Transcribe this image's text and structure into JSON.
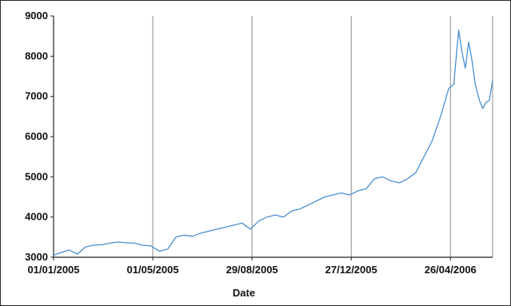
{
  "chart_data": {
    "type": "line",
    "title": "",
    "xlabel": "Date",
    "ylabel": "",
    "x_tick_labels": [
      "01/01/2005",
      "01/05/2005",
      "29/08/2005",
      "27/12/2005",
      "26/04/2006"
    ],
    "x_tick_dates": [
      "2005-01-01",
      "2005-05-01",
      "2005-08-29",
      "2005-12-27",
      "2006-04-26"
    ],
    "xlim": [
      "2005-01-01",
      "2006-06-16"
    ],
    "y_tick_labels": [
      "3000",
      "4000",
      "5000",
      "6000",
      "7000",
      "8000",
      "9000"
    ],
    "y_ticks": [
      3000,
      4000,
      5000,
      6000,
      7000,
      8000,
      9000
    ],
    "ylim": [
      3000,
      9000
    ],
    "grid": "vertical",
    "legend": "none",
    "colors": {
      "line": "#4a8fd0",
      "grid": "#8c8c8c",
      "axis": "#222222"
    },
    "series": [
      {
        "dates": [
          "2005-01-01",
          "2005-01-10",
          "2005-01-20",
          "2005-01-30",
          "2005-02-08",
          "2005-02-18",
          "2005-02-28",
          "2005-03-10",
          "2005-03-20",
          "2005-03-30",
          "2005-04-09",
          "2005-04-19",
          "2005-04-29",
          "2005-05-09",
          "2005-05-19",
          "2005-05-29",
          "2005-06-08",
          "2005-06-18",
          "2005-06-28",
          "2005-07-08",
          "2005-07-18",
          "2005-07-28",
          "2005-08-07",
          "2005-08-17",
          "2005-08-27",
          "2005-09-06",
          "2005-09-16",
          "2005-09-26",
          "2005-10-06",
          "2005-10-16",
          "2005-10-26",
          "2005-11-05",
          "2005-11-15",
          "2005-11-25",
          "2005-12-05",
          "2005-12-15",
          "2005-12-25",
          "2006-01-04",
          "2006-01-14",
          "2006-01-24",
          "2006-02-03",
          "2006-02-13",
          "2006-02-23",
          "2006-03-05",
          "2006-03-15",
          "2006-03-25",
          "2006-04-04",
          "2006-04-14",
          "2006-04-24",
          "2006-04-30",
          "2006-05-06",
          "2006-05-10",
          "2006-05-14",
          "2006-05-18",
          "2006-05-22",
          "2006-05-26",
          "2006-05-31",
          "2006-06-04",
          "2006-06-08",
          "2006-06-12",
          "2006-06-16"
        ],
        "values": [
          3050,
          3120,
          3180,
          3080,
          3250,
          3300,
          3310,
          3350,
          3380,
          3360,
          3350,
          3300,
          3280,
          3150,
          3200,
          3500,
          3550,
          3520,
          3600,
          3650,
          3700,
          3750,
          3800,
          3850,
          3700,
          3900,
          4000,
          4050,
          4000,
          4150,
          4200,
          4300,
          4400,
          4500,
          4550,
          4600,
          4550,
          4650,
          4700,
          4950,
          5000,
          4900,
          4850,
          4950,
          5100,
          5500,
          5900,
          6500,
          7200,
          7300,
          8650,
          8100,
          7700,
          8350,
          7900,
          7300,
          6900,
          6700,
          6850,
          6900,
          7400
        ]
      }
    ]
  }
}
